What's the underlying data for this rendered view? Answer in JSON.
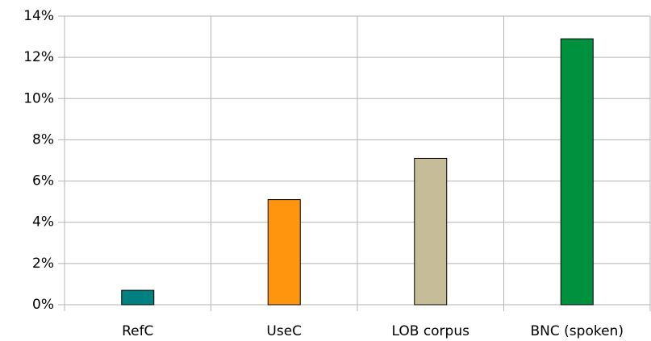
{
  "chart_data": {
    "type": "bar",
    "categories": [
      "RefC",
      "UseC",
      "LOB corpus",
      "BNC (spoken)"
    ],
    "values": [
      0.7,
      5.1,
      7.1,
      12.9
    ],
    "colors": [
      "#008080",
      "#ff950e",
      "#c5bd97",
      "#00913f"
    ],
    "ylim": [
      0,
      14
    ],
    "yticks": [
      {
        "value": 0,
        "label": "0%"
      },
      {
        "value": 2,
        "label": "2%"
      },
      {
        "value": 4,
        "label": "4%"
      },
      {
        "value": 6,
        "label": "6%"
      },
      {
        "value": 8,
        "label": "8%"
      },
      {
        "value": 10,
        "label": "10%"
      },
      {
        "value": 12,
        "label": "12%"
      },
      {
        "value": 14,
        "label": "14%"
      }
    ],
    "grid": true
  }
}
